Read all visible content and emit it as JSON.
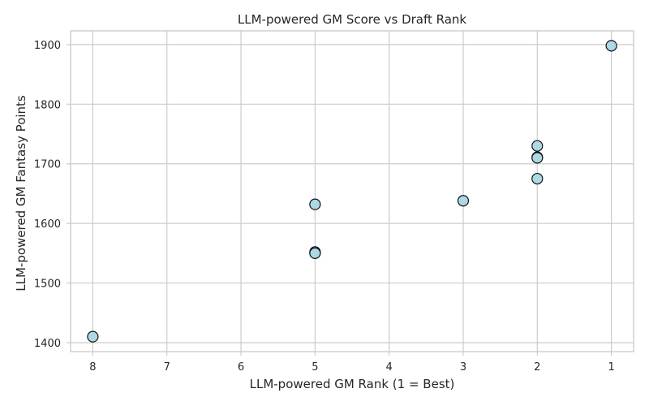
{
  "chart_data": {
    "type": "scatter",
    "title": "LLM-powered GM Score vs Draft Rank",
    "xlabel": "LLM-powered GM Rank (1 = Best)",
    "ylabel": "LLM-powered GM Fantasy Points",
    "x_inverted": true,
    "xlim": [
      8.3,
      0.7
    ],
    "ylim": [
      1385,
      1923
    ],
    "xticks": [
      8,
      7,
      6,
      5,
      4,
      3,
      2,
      1
    ],
    "yticks": [
      1400,
      1500,
      1600,
      1700,
      1800,
      1900
    ],
    "grid": true,
    "legend": "none",
    "marker_color": "#add8e6",
    "marker_edge": "#111111",
    "points": [
      {
        "x": 8,
        "y": 1410
      },
      {
        "x": 5,
        "y": 1632
      },
      {
        "x": 5,
        "y": 1552
      },
      {
        "x": 5,
        "y": 1550
      },
      {
        "x": 3,
        "y": 1638
      },
      {
        "x": 2,
        "y": 1730
      },
      {
        "x": 2,
        "y": 1711
      },
      {
        "x": 2,
        "y": 1710
      },
      {
        "x": 2,
        "y": 1675
      },
      {
        "x": 1,
        "y": 1898
      }
    ]
  }
}
